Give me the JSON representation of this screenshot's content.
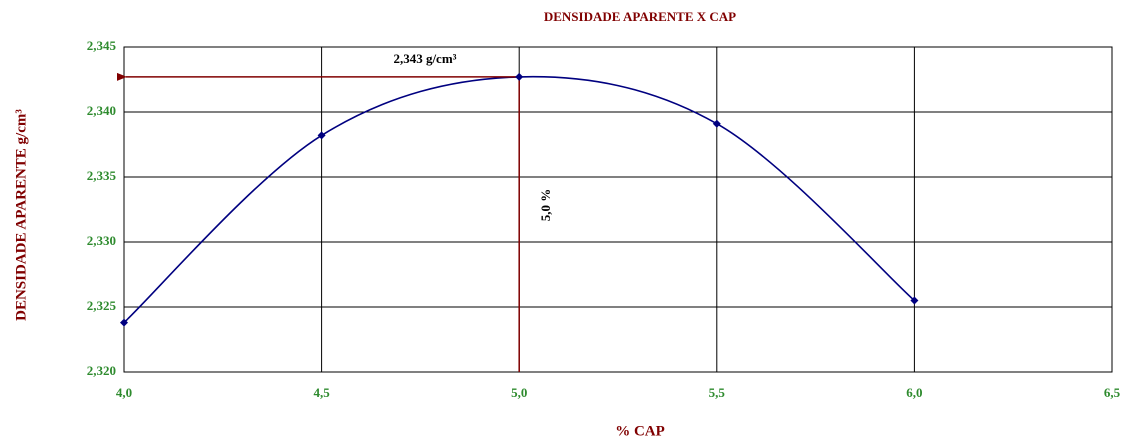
{
  "chart_data": {
    "type": "line",
    "title": "DENSIDADE APARENTE X CAP",
    "x_label": "% CAP",
    "y_label": "DENSIDADE APARENTE g/cm³",
    "x": [
      4.0,
      4.5,
      5.0,
      5.5,
      6.0
    ],
    "values": [
      2.3238,
      2.3382,
      2.3427,
      2.3391,
      2.3255
    ],
    "color": "#000080",
    "xlim": [
      4.0,
      6.5
    ],
    "xticks": [
      {
        "value": 4.0,
        "label": "4,0"
      },
      {
        "value": 4.5,
        "label": "4,5"
      },
      {
        "value": 5.0,
        "label": "5,0"
      },
      {
        "value": 5.5,
        "label": "5,5"
      },
      {
        "value": 6.0,
        "label": "6,0"
      },
      {
        "value": 6.5,
        "label": "6,5"
      }
    ],
    "ylim": [
      2.32,
      2.345
    ],
    "yticks": [
      {
        "value": 2.32,
        "label": "2,320"
      },
      {
        "value": 2.325,
        "label": "2,325"
      },
      {
        "value": 2.33,
        "label": "2,330"
      },
      {
        "value": 2.335,
        "label": "2,335"
      },
      {
        "value": 2.34,
        "label": "2,340"
      },
      {
        "value": 2.345,
        "label": "2,345"
      }
    ],
    "grid": true,
    "reference": {
      "x": 5.0,
      "y": 2.3427,
      "color": "#800000"
    },
    "annotations": [
      "2,343 g/cm³",
      "5,0  %"
    ]
  }
}
